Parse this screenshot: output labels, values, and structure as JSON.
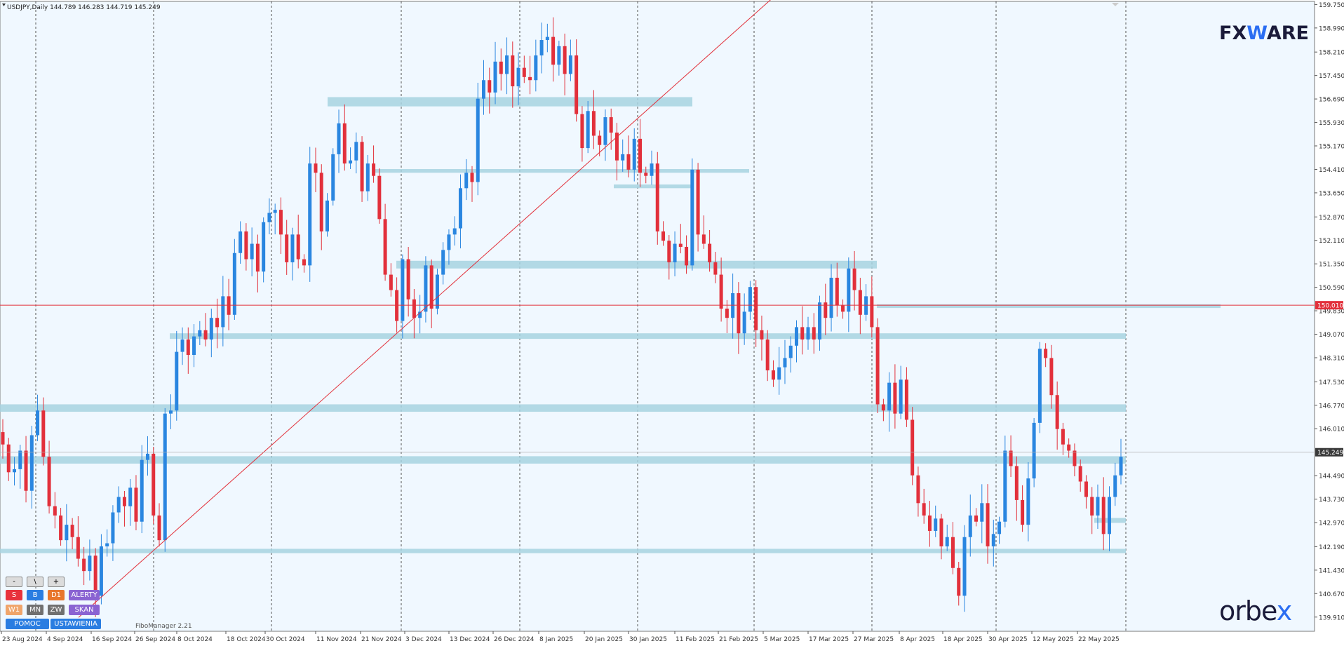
{
  "header": {
    "symbol": "USDJPY",
    "period": "Daily",
    "open": "144.789",
    "high": "146.283",
    "low": "144.719",
    "close": "145.249"
  },
  "logos": {
    "top_prefix": "FX",
    "top_w": "W",
    "top_suffix": "ARE",
    "bottom_prefix": "orbe",
    "bottom_x": "x"
  },
  "fibo_label": "FiboManager 2.21",
  "buttons": [
    {
      "label": "-",
      "color": "gray"
    },
    {
      "label": "\\",
      "color": "gray"
    },
    {
      "label": "+",
      "color": "gray"
    },
    {
      "label": "S",
      "color": "#e8323c"
    },
    {
      "label": "B",
      "color": "#2a7de1"
    },
    {
      "label": "D1",
      "color": "#e8762c"
    },
    {
      "label": "ALERTY",
      "color": "#8a63d2"
    },
    {
      "label": "W1",
      "color": "#f0a56b"
    },
    {
      "label": "MN",
      "color": "#707070"
    },
    {
      "label": "ZW",
      "color": "#707070"
    },
    {
      "label": "SKAN",
      "color": "#8a63d2"
    },
    {
      "label": "POMOC",
      "color": "#2a7de1"
    },
    {
      "label": "USTAWIENIA",
      "color": "#2a7de1"
    }
  ],
  "colors": {
    "background": "#f0f8ff",
    "bull": "#2a86e0",
    "bear": "#e2303b",
    "zone": "#a7d3e0",
    "level_line": "#e2303b",
    "current_price_box": "#3a3a3a",
    "level_box": "#e2303b"
  },
  "chart_data": {
    "type": "candlestick",
    "symbol": "USDJPY",
    "timeframe": "Daily",
    "y_ticks": [
      159.75,
      158.99,
      158.21,
      157.45,
      156.69,
      155.93,
      155.17,
      154.41,
      153.65,
      152.87,
      152.11,
      151.35,
      150.59,
      149.83,
      149.07,
      148.31,
      147.53,
      146.77,
      146.01,
      144.49,
      143.73,
      142.97,
      142.19,
      141.43,
      140.67,
      139.91
    ],
    "x_labels": [
      "23 Aug 2024",
      "4 Sep 2024",
      "16 Sep 2024",
      "26 Sep 2024",
      "8 Oct 2024",
      "18 Oct 2024",
      "30 Oct 2024",
      "11 Nov 2024",
      "21 Nov 2024",
      "3 Dec 2024",
      "13 Dec 2024",
      "26 Dec 2024",
      "8 Jan 2025",
      "20 Jan 2025",
      "30 Jan 2025",
      "11 Feb 2025",
      "21 Feb 2025",
      "5 Mar 2025",
      "17 Mar 2025",
      "27 Mar 2025",
      "8 Apr 2025",
      "18 Apr 2025",
      "30 Apr 2025",
      "12 May 2025",
      "22 May 2025"
    ],
    "current_price": "145.249",
    "level_price": "150.010",
    "ylim": [
      139.45,
      159.85
    ],
    "closes": [
      145.5,
      144.6,
      144.7,
      145.3,
      144.0,
      145.8,
      146.6,
      145.1,
      143.5,
      143.2,
      142.4,
      142.9,
      142.5,
      141.8,
      141.4,
      141.9,
      140.6,
      142.2,
      142.3,
      143.3,
      143.8,
      143.5,
      144.1,
      143.0,
      145.0,
      145.2,
      143.2,
      142.4,
      146.5,
      146.6,
      148.5,
      148.9,
      148.4,
      149.0,
      149.2,
      148.9,
      149.6,
      149.3,
      150.3,
      149.7,
      151.7,
      152.4,
      151.5,
      152.0,
      151.1,
      152.7,
      153.0,
      153.1,
      152.3,
      151.4,
      152.3,
      151.5,
      151.3,
      154.6,
      154.3,
      152.4,
      153.4,
      154.9,
      155.9,
      154.6,
      154.7,
      155.3,
      153.7,
      154.6,
      154.2,
      152.8,
      151.0,
      150.5,
      149.5,
      151.5,
      150.2,
      149.6,
      149.8,
      151.3,
      149.9,
      151.0,
      151.8,
      152.3,
      152.5,
      153.8,
      154.3,
      154.0,
      156.7,
      157.3,
      156.9,
      157.9,
      157.5,
      158.1,
      157.1,
      157.7,
      157.4,
      157.3,
      158.1,
      158.6,
      158.7,
      157.8,
      158.4,
      157.5,
      158.1,
      156.2,
      155.1,
      156.3,
      155.5,
      155.2,
      156.1,
      155.6,
      154.7,
      154.9,
      154.4,
      155.4,
      154.3,
      154.2,
      154.6,
      152.4,
      152.1,
      151.4,
      152.0,
      151.9,
      151.3,
      154.4,
      152.3,
      152.0,
      151.4,
      151.0,
      149.9,
      149.6,
      150.4,
      149.1,
      149.8,
      150.6,
      149.2,
      148.9,
      147.9,
      147.6,
      148.0,
      148.3,
      148.7,
      149.3,
      148.9,
      149.3,
      148.9,
      150.1,
      149.6,
      150.9,
      150.0,
      149.8,
      151.2,
      150.5,
      149.7,
      150.3,
      149.3,
      146.8,
      146.6,
      147.5,
      146.5,
      147.6,
      146.3,
      144.5,
      143.6,
      143.2,
      142.7,
      143.1,
      142.2,
      142.5,
      141.5,
      140.6,
      142.5,
      143.2,
      143.0,
      143.6,
      142.2,
      142.6,
      143.0,
      145.3,
      144.8,
      143.7,
      142.9,
      144.4,
      146.2,
      148.6,
      148.3,
      147.1,
      146.0,
      145.5,
      145.3,
      144.8,
      144.3,
      143.8,
      143.2,
      143.8,
      142.6,
      143.8,
      144.5,
      145.1
    ]
  }
}
